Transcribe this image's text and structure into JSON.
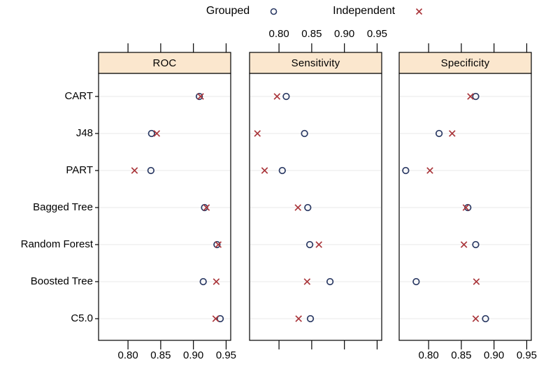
{
  "legend": {
    "items": [
      {
        "label": "Grouped",
        "marker": "circle-icon"
      },
      {
        "label": "Independent",
        "marker": "x-icon"
      }
    ]
  },
  "chart_data": {
    "type": "scatter",
    "subtype": "trellis-dotplot",
    "panels": [
      "ROC",
      "Sensitivity",
      "Specificity"
    ],
    "categories": [
      "CART",
      "J48",
      "PART",
      "Bagged Tree",
      "Random Forest",
      "Boosted Tree",
      "C5.0"
    ],
    "x_ticks": [
      0.8,
      0.85,
      0.9,
      0.95
    ],
    "x_tick_labels": [
      "0.80",
      "0.85",
      "0.90",
      "0.95"
    ],
    "xlim": [
      0.755,
      0.957
    ],
    "grid": "light horizontal line per category",
    "legend_position": "top",
    "axis_alternating": "bottom labels on panels 1 and 3, top labels on panel 2",
    "series": [
      {
        "name": "Grouped",
        "marker": "circle",
        "color": "#2b3a64",
        "values": {
          "ROC": [
            0.909,
            0.836,
            0.835,
            0.917,
            0.936,
            0.915,
            0.941
          ],
          "Sensitivity": [
            0.811,
            0.839,
            0.805,
            0.844,
            0.847,
            0.878,
            0.848
          ],
          "Specificity": [
            0.872,
            0.816,
            0.765,
            0.86,
            0.872,
            0.781,
            0.887
          ]
        }
      },
      {
        "name": "Independent",
        "marker": "x",
        "color": "#a93439",
        "values": {
          "ROC": [
            0.911,
            0.844,
            0.81,
            0.92,
            0.938,
            0.935,
            0.934
          ],
          "Sensitivity": [
            0.797,
            0.767,
            0.778,
            0.829,
            0.861,
            0.843,
            0.83
          ],
          "Specificity": [
            0.864,
            0.836,
            0.802,
            0.857,
            0.854,
            0.873,
            0.872
          ]
        }
      }
    ],
    "colors": {
      "strip_fill": "#fbe7ce",
      "panel_border": "#000000",
      "gridline": "#e9e9e9",
      "grouped_marker": "#2b3a64",
      "independent_marker": "#a93439"
    }
  }
}
